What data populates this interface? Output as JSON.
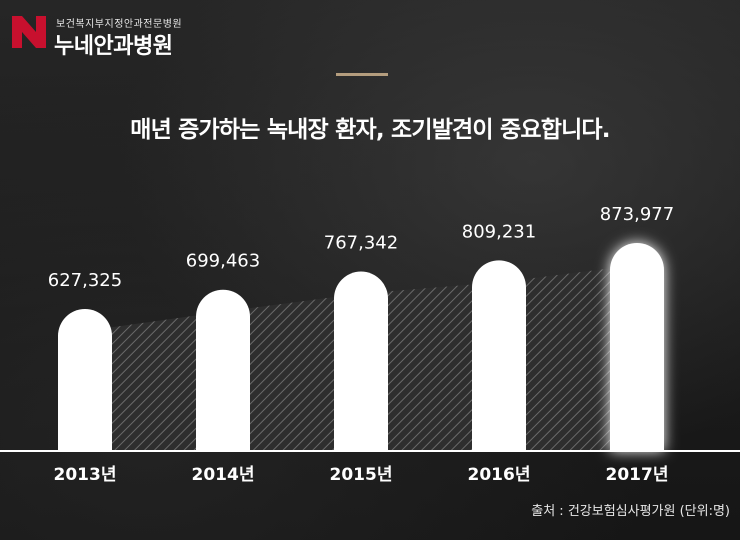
{
  "brand": {
    "subtitle": "보건복지부지정안과전문병원",
    "name": "누네안과병원",
    "accent": "#c8102e"
  },
  "headline": "매년 증가하는 녹내장 환자, 조기발견이 중요합니다.",
  "source": "출처 : 건강보험심사평가원 (단위:명)",
  "chart_data": {
    "type": "bar",
    "categories": [
      "2013년",
      "2014년",
      "2015년",
      "2016년",
      "2017년"
    ],
    "values": [
      627325,
      699463,
      767342,
      809231,
      873977
    ],
    "value_labels": [
      "627,325",
      "699,463",
      "767,342",
      "809,231",
      "873,977"
    ],
    "title": "",
    "xlabel": "",
    "ylabel": "",
    "grid": false,
    "bar_color": "#ffffff",
    "highlight_index": 4
  }
}
